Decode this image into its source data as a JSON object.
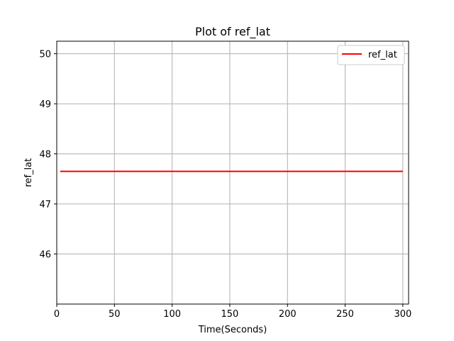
{
  "chart_data": {
    "type": "line",
    "title": "Plot of ref_lat",
    "xlabel": "Time(Seconds)",
    "ylabel": "ref_lat",
    "xlim": [
      0,
      305
    ],
    "ylim": [
      45.0,
      50.25
    ],
    "xticks": [
      0,
      50,
      100,
      150,
      200,
      250,
      300
    ],
    "yticks": [
      46,
      47,
      48,
      49,
      50
    ],
    "grid": true,
    "legend_position": "top-right",
    "series": [
      {
        "name": "ref_lat",
        "color": "#ff0000",
        "x": [
          3,
          300
        ],
        "y": [
          47.65,
          47.65
        ]
      }
    ]
  }
}
